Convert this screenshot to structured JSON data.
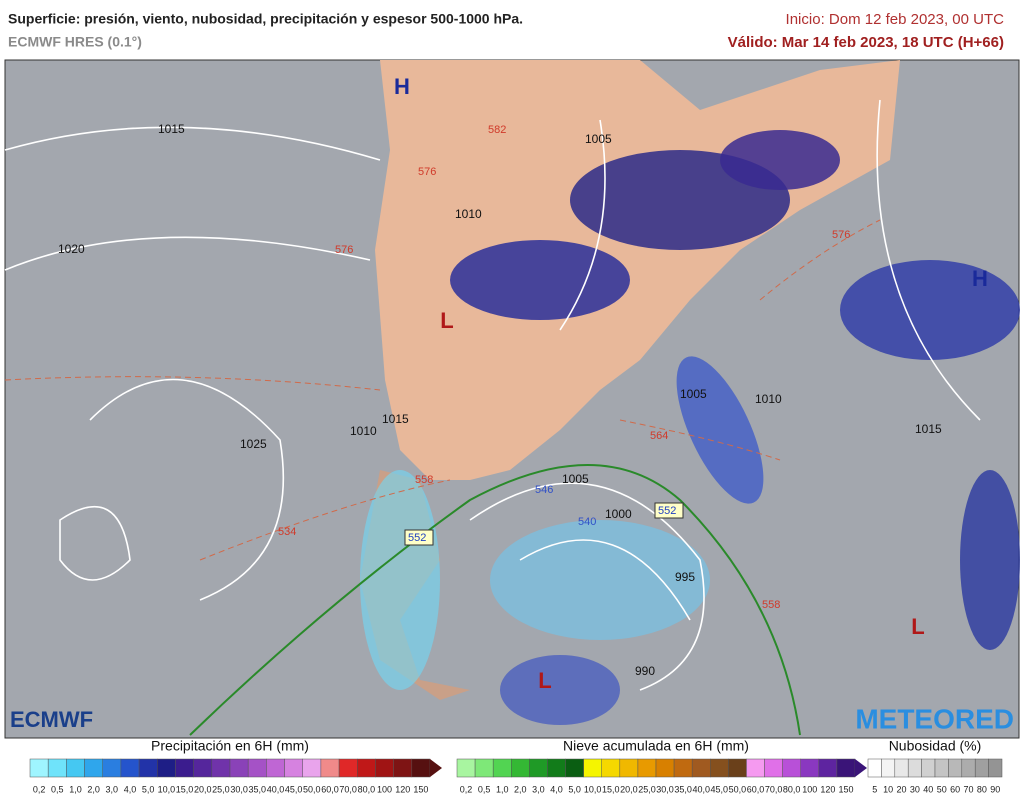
{
  "header": {
    "title": "Superficie: presión, viento, nubosidad, precipitación y espesor 500-1000 hPa.",
    "model": "ECMWF HRES (0.1°)",
    "init": "Inicio: Dom 12 feb 2023, 00 UTC",
    "valid": "Válido: Mar 14 feb 2023, 18 UTC (H+66)"
  },
  "map": {
    "pressure_centers": [
      "H",
      "L",
      "H",
      "L",
      "L"
    ],
    "isobar_labels": [
      "1015",
      "1020",
      "1025",
      "1010",
      "1005",
      "1015",
      "1010",
      "1005",
      "1010",
      "1015",
      "1005",
      "1000",
      "995",
      "990"
    ],
    "thickness_labels": [
      "582",
      "576",
      "576",
      "576",
      "564",
      "558",
      "558",
      "552",
      "552",
      "546",
      "540",
      "534"
    ],
    "logos": [
      "ECMWF",
      "METEORED"
    ]
  },
  "legends": [
    {
      "title": "Precipitación en 6H (mm)",
      "items": [
        {
          "label": "0,2",
          "color": "#9ff5ff"
        },
        {
          "label": "0,5",
          "color": "#6fe3fa"
        },
        {
          "label": "1,0",
          "color": "#45c8f2"
        },
        {
          "label": "2,0",
          "color": "#2fa6ec"
        },
        {
          "label": "3,0",
          "color": "#2a7ee0"
        },
        {
          "label": "4,0",
          "color": "#2554cc"
        },
        {
          "label": "5,0",
          "color": "#2233a8"
        },
        {
          "label": "10,0",
          "color": "#1e1e86"
        },
        {
          "label": "15,0",
          "color": "#3b1c8e"
        },
        {
          "label": "20,0",
          "color": "#55269c"
        },
        {
          "label": "25,0",
          "color": "#7033aa"
        },
        {
          "label": "30,0",
          "color": "#8a42b8"
        },
        {
          "label": "35,0",
          "color": "#a552c6"
        },
        {
          "label": "40,0",
          "color": "#bf66d4"
        },
        {
          "label": "45,0",
          "color": "#d682e0"
        },
        {
          "label": "50,0",
          "color": "#e9a4ec"
        },
        {
          "label": "60,0",
          "color": "#f08a8a"
        },
        {
          "label": "70,0",
          "color": "#e02828"
        },
        {
          "label": "80,0",
          "color": "#c01818"
        },
        {
          "label": "100",
          "color": "#a01414"
        },
        {
          "label": "120",
          "color": "#7e1414"
        },
        {
          "label": "150",
          "color": "#561010"
        }
      ]
    },
    {
      "title": "Nieve acumulada en 6H (mm)",
      "items": [
        {
          "label": "0,2",
          "color": "#a8f5a0"
        },
        {
          "label": "0,5",
          "color": "#7ee878"
        },
        {
          "label": "1,0",
          "color": "#52d452"
        },
        {
          "label": "2,0",
          "color": "#34b834"
        },
        {
          "label": "3,0",
          "color": "#1f9a26"
        },
        {
          "label": "4,0",
          "color": "#127c1a"
        },
        {
          "label": "5,0",
          "color": "#0a5e12"
        },
        {
          "label": "10,0",
          "color": "#f5f500"
        },
        {
          "label": "15,0",
          "color": "#f5d800"
        },
        {
          "label": "20,0",
          "color": "#f0b800"
        },
        {
          "label": "25,0",
          "color": "#e89a00"
        },
        {
          "label": "30,0",
          "color": "#d88000"
        },
        {
          "label": "35,0",
          "color": "#c06a10"
        },
        {
          "label": "40,0",
          "color": "#a05a20"
        },
        {
          "label": "45,0",
          "color": "#85501e"
        },
        {
          "label": "50,0",
          "color": "#6a401a"
        },
        {
          "label": "60,0",
          "color": "#f59af0"
        },
        {
          "label": "70,0",
          "color": "#e070e8"
        },
        {
          "label": "80,0",
          "color": "#b850d8"
        },
        {
          "label": "100",
          "color": "#8a38c0"
        },
        {
          "label": "120",
          "color": "#5e24a0"
        },
        {
          "label": "150",
          "color": "#3a1478"
        }
      ]
    },
    {
      "title": "Nubosidad (%)",
      "items": [
        {
          "label": "5",
          "color": "#ffffff"
        },
        {
          "label": "10",
          "color": "#f4f4f4"
        },
        {
          "label": "20",
          "color": "#e8e8e8"
        },
        {
          "label": "30",
          "color": "#dcdcdc"
        },
        {
          "label": "40",
          "color": "#d0d0d0"
        },
        {
          "label": "50",
          "color": "#c4c4c4"
        },
        {
          "label": "60",
          "color": "#b8b8b8"
        },
        {
          "label": "70",
          "color": "#acacac"
        },
        {
          "label": "80",
          "color": "#a0a0a0"
        },
        {
          "label": "90",
          "color": "#949494"
        }
      ]
    }
  ]
}
